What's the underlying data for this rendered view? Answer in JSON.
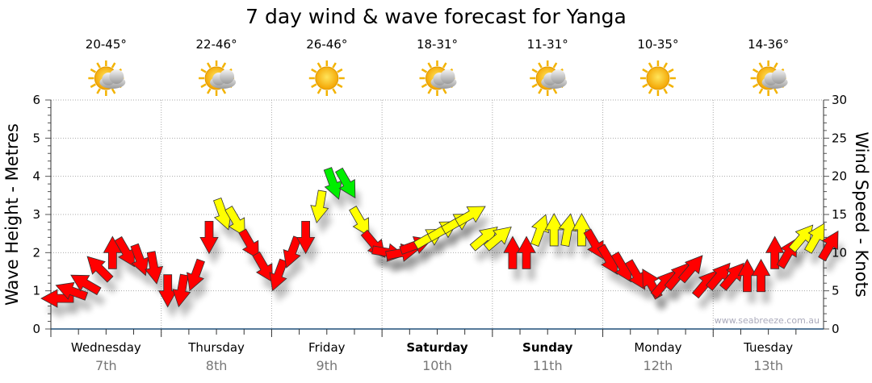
{
  "chart_data": {
    "type": "scatter",
    "title": "7 day wind & wave forecast for Yanga",
    "ylabel_left": "Wave Height - Metres",
    "ylabel_right": "Wind Speed - Knots",
    "ylim_left": [
      0,
      6
    ],
    "ylim_right": [
      0,
      30
    ],
    "yticks_left": [
      "0",
      "1",
      "2",
      "3",
      "4",
      "5",
      "6"
    ],
    "yticks_right": [
      "0",
      "5",
      "10",
      "15",
      "20",
      "25",
      "30"
    ],
    "grid": true,
    "watermark": "www.seabreeze.com.au",
    "days": [
      {
        "name": "Wednesday",
        "date": "7th",
        "bold": false,
        "temp": "20-45°",
        "icon": "partly-cloudy"
      },
      {
        "name": "Thursday",
        "date": "8th",
        "bold": false,
        "temp": "22-46°",
        "icon": "partly-cloudy"
      },
      {
        "name": "Friday",
        "date": "9th",
        "bold": false,
        "temp": "26-46°",
        "icon": "sunny"
      },
      {
        "name": "Saturday",
        "date": "10th",
        "bold": true,
        "temp": "18-31°",
        "icon": "partly-cloudy"
      },
      {
        "name": "Sunday",
        "date": "11th",
        "bold": true,
        "temp": "11-31°",
        "icon": "partly-cloudy"
      },
      {
        "name": "Monday",
        "date": "12th",
        "bold": false,
        "temp": "10-35°",
        "icon": "sunny"
      },
      {
        "name": "Tuesday",
        "date": "13th",
        "bold": false,
        "temp": "14-36°",
        "icon": "partly-cloudy"
      }
    ],
    "colors": {
      "red": "#ff0000",
      "yellow": "#ffff00",
      "green": "#00ee00"
    },
    "wind_series": {
      "name": "Wind speed (knots) and direction arrow, 3-hourly",
      "points": [
        [
          4,
          270,
          "red"
        ],
        [
          5,
          290,
          "red"
        ],
        [
          6,
          300,
          "red"
        ],
        [
          8,
          315,
          "red"
        ],
        [
          10,
          0,
          "red"
        ],
        [
          10,
          150,
          "red"
        ],
        [
          9,
          160,
          "red"
        ],
        [
          8,
          170,
          "red"
        ],
        [
          5,
          180,
          "red"
        ],
        [
          5,
          190,
          "red"
        ],
        [
          7,
          200,
          "red"
        ],
        [
          12,
          180,
          "red"
        ],
        [
          15,
          160,
          "yellow"
        ],
        [
          14,
          150,
          "yellow"
        ],
        [
          11,
          150,
          "red"
        ],
        [
          8,
          150,
          "red"
        ],
        [
          7,
          200,
          "red"
        ],
        [
          10,
          200,
          "red"
        ],
        [
          12,
          180,
          "red"
        ],
        [
          16,
          190,
          "yellow"
        ],
        [
          19,
          160,
          "green"
        ],
        [
          19,
          150,
          "green"
        ],
        [
          14,
          150,
          "yellow"
        ],
        [
          11,
          140,
          "red"
        ],
        [
          10,
          100,
          "red"
        ],
        [
          10,
          80,
          "red"
        ],
        [
          11,
          70,
          "red"
        ],
        [
          12,
          60,
          "yellow"
        ],
        [
          13,
          60,
          "yellow"
        ],
        [
          14,
          60,
          "yellow"
        ],
        [
          15,
          60,
          "yellow"
        ],
        [
          12,
          50,
          "yellow"
        ],
        [
          12,
          50,
          "yellow"
        ],
        [
          10,
          0,
          "red"
        ],
        [
          10,
          0,
          "red"
        ],
        [
          13,
          20,
          "yellow"
        ],
        [
          13,
          0,
          "yellow"
        ],
        [
          13,
          10,
          "yellow"
        ],
        [
          13,
          0,
          "yellow"
        ],
        [
          11,
          150,
          "red"
        ],
        [
          9,
          150,
          "red"
        ],
        [
          8,
          150,
          "red"
        ],
        [
          7,
          150,
          "red"
        ],
        [
          6,
          330,
          "red"
        ],
        [
          6,
          40,
          "red"
        ],
        [
          7,
          40,
          "red"
        ],
        [
          8,
          40,
          "red"
        ],
        [
          6,
          40,
          "red"
        ],
        [
          7,
          40,
          "red"
        ],
        [
          7,
          40,
          "red"
        ],
        [
          7,
          0,
          "red"
        ],
        [
          7,
          0,
          "red"
        ],
        [
          10,
          0,
          "red"
        ],
        [
          10,
          30,
          "red"
        ],
        [
          12,
          40,
          "yellow"
        ],
        [
          12,
          30,
          "yellow"
        ],
        [
          11,
          30,
          "red"
        ]
      ]
    }
  }
}
